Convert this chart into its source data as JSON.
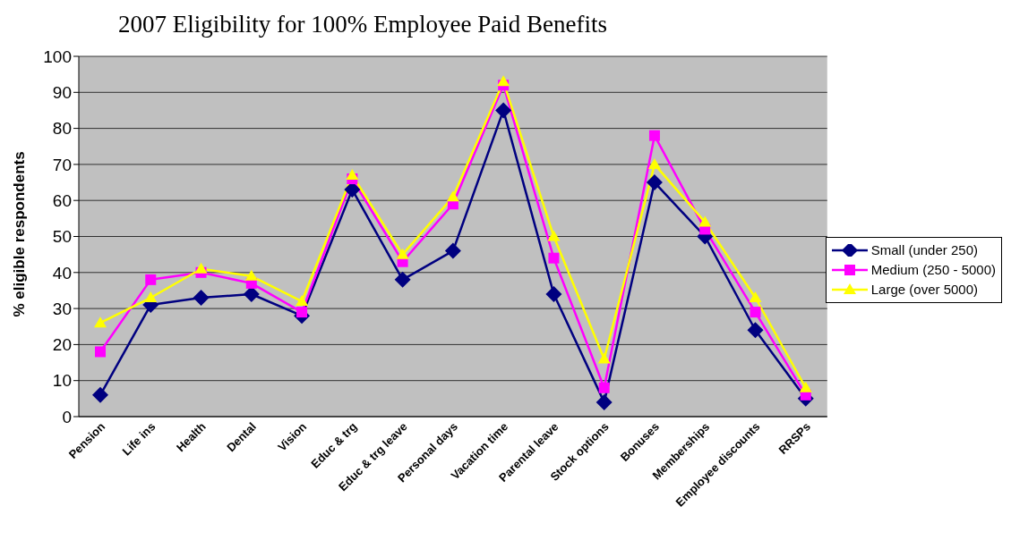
{
  "chart_data": {
    "type": "line",
    "title": "2007 Eligibility for 100% Employee Paid Benefits",
    "ylabel": "% eligible respondents",
    "categories": [
      "Pension",
      "Life ins",
      "Health",
      "Dental",
      "Vision",
      "Educ & trg",
      "Educ & trg leave",
      "Personal days",
      "Vacation time",
      "Parental leave",
      "Stock options",
      "Bonuses",
      "Memberships",
      "Employee discounts",
      "RRSPs"
    ],
    "series": [
      {
        "name": "Small (under 250)",
        "color": "#000080",
        "marker": "diamond",
        "values": [
          6,
          31,
          33,
          34,
          28,
          63,
          38,
          46,
          85,
          34,
          4,
          65,
          50,
          24,
          5
        ]
      },
      {
        "name": "Medium (250 - 5000)",
        "color": "#ff00ff",
        "marker": "square",
        "values": [
          18,
          38,
          40,
          37,
          29,
          66,
          43,
          59,
          92,
          44,
          8,
          78,
          52,
          29,
          6
        ]
      },
      {
        "name": "Large (over 5000)",
        "color": "#ffff00",
        "marker": "triangle",
        "values": [
          26,
          33,
          41,
          39,
          32,
          67,
          45,
          61,
          93,
          50,
          16,
          70,
          54,
          33,
          8
        ]
      }
    ],
    "ylim": [
      0,
      100
    ],
    "yticks": [
      0,
      10,
      20,
      30,
      40,
      50,
      60,
      70,
      80,
      90,
      100
    ],
    "grid": "y",
    "legend": "right"
  }
}
